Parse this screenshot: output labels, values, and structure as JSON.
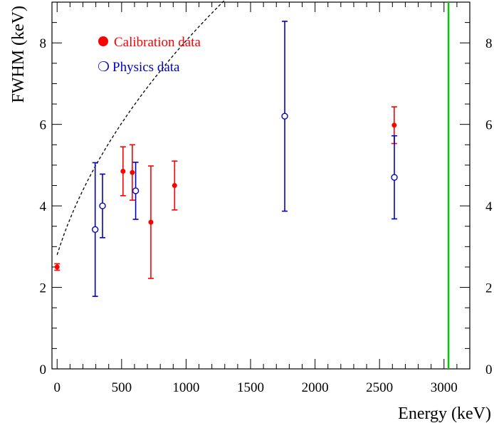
{
  "chart_data": {
    "type": "scatter",
    "xlabel": "Energy (keV)",
    "ylabel": "FWHM (keV)",
    "xlim": [
      -40,
      3200
    ],
    "ylim": [
      0,
      9.0
    ],
    "x_ticks": [
      0,
      500,
      1000,
      1500,
      2000,
      2500,
      3000
    ],
    "y_ticks": [
      0,
      2,
      4,
      6,
      8
    ],
    "x_tick_labels": [
      "0",
      "500",
      "1000",
      "1500",
      "2000",
      "2500",
      "3000"
    ],
    "y_tick_labels": [
      "0",
      "2",
      "4",
      "6",
      "8"
    ],
    "right_tick_labels": [
      "0",
      "2",
      "4",
      "6",
      "8"
    ],
    "legend_position": "top-left",
    "series": [
      {
        "name": "Calibration data",
        "marker": "filled-circle",
        "color": "#ff0000",
        "points": [
          {
            "x": 0,
            "y": 2.5,
            "err": 0.08
          },
          {
            "x": 511,
            "y": 4.85,
            "err": 0.6
          },
          {
            "x": 583,
            "y": 4.82,
            "err": 0.68
          },
          {
            "x": 727,
            "y": 3.6,
            "err": 1.38
          },
          {
            "x": 911,
            "y": 4.5,
            "err": 0.6
          },
          {
            "x": 2614,
            "y": 5.98,
            "err": 0.45
          }
        ]
      },
      {
        "name": "Physics data",
        "marker": "open-circle",
        "color": "#0000cc",
        "points": [
          {
            "x": 295,
            "y": 3.42,
            "err": 1.64
          },
          {
            "x": 352,
            "y": 4.0,
            "err": 0.78
          },
          {
            "x": 609,
            "y": 4.37,
            "err": 0.7
          },
          {
            "x": 1765,
            "y": 6.2,
            "err": 2.33
          },
          {
            "x": 2615,
            "y": 4.7,
            "err": 1.02
          }
        ]
      }
    ],
    "fit_curve": {
      "style": "dashed",
      "color": "#000000",
      "a": 2.8,
      "b": 0.057
    },
    "vertical_line": {
      "x": 3035,
      "color": "#00cc00"
    }
  }
}
